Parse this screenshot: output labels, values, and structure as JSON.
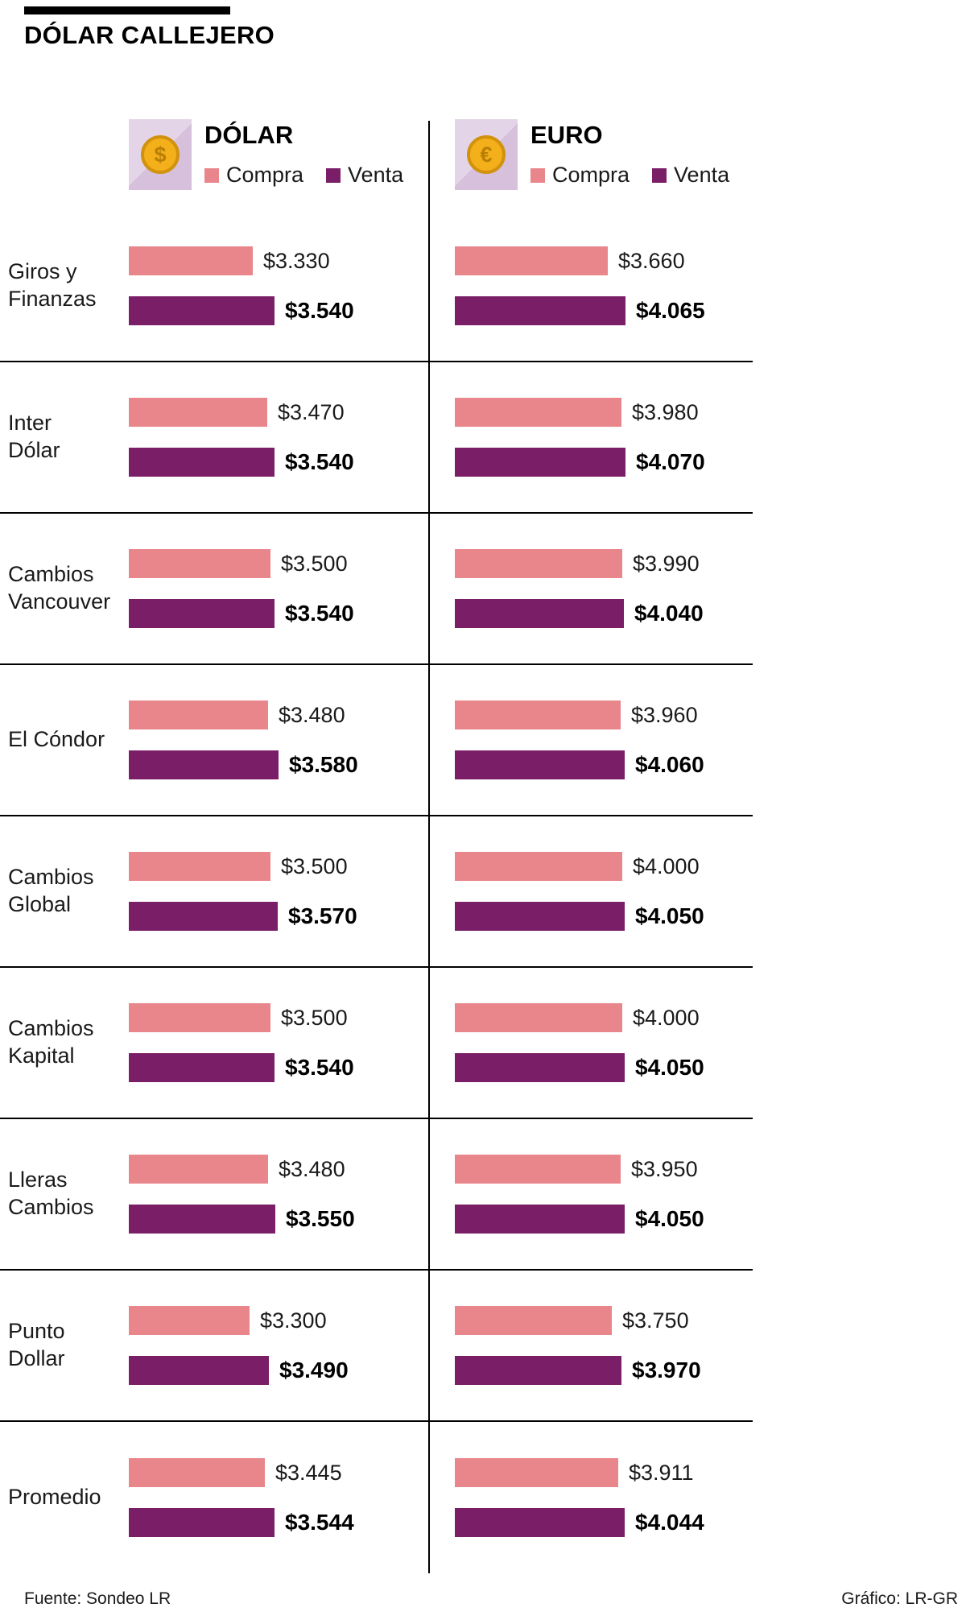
{
  "header": {
    "title": "DÓLAR CALLEJERO"
  },
  "columns": [
    {
      "id": "dolar",
      "label": "DÓLAR",
      "coin_symbol": "$",
      "legend": {
        "compra": "Compra",
        "venta": "Venta"
      }
    },
    {
      "id": "euro",
      "label": "EURO",
      "coin_symbol": "€",
      "legend": {
        "compra": "Compra",
        "venta": "Venta"
      }
    }
  ],
  "colors": {
    "compra": "#E8868C",
    "venta": "#7B1E68",
    "coin": "#F3B01A",
    "coin_edge": "#D1920E",
    "coin_text": "#B97E06",
    "tile_light": "#E4D4E7",
    "tile_dark": "#D6C0DC",
    "rule": "#000000"
  },
  "rows": [
    {
      "name": "Giros y\nFinanzas",
      "dolar": {
        "compra": {
          "label": "$3.330",
          "value": 3330
        },
        "venta": {
          "label": "$3.540",
          "value": 3540
        }
      },
      "euro": {
        "compra": {
          "label": "$3.660",
          "value": 3660
        },
        "venta": {
          "label": "$4.065",
          "value": 4065
        }
      }
    },
    {
      "name": "Inter\nDólar",
      "dolar": {
        "compra": {
          "label": "$3.470",
          "value": 3470
        },
        "venta": {
          "label": "$3.540",
          "value": 3540
        }
      },
      "euro": {
        "compra": {
          "label": "$3.980",
          "value": 3980
        },
        "venta": {
          "label": "$4.070",
          "value": 4070
        }
      }
    },
    {
      "name": "Cambios\nVancouver",
      "dolar": {
        "compra": {
          "label": "$3.500",
          "value": 3500
        },
        "venta": {
          "label": "$3.540",
          "value": 3540
        }
      },
      "euro": {
        "compra": {
          "label": "$3.990",
          "value": 3990
        },
        "venta": {
          "label": "$4.040",
          "value": 4040
        }
      }
    },
    {
      "name": "El Cóndor",
      "dolar": {
        "compra": {
          "label": "$3.480",
          "value": 3480
        },
        "venta": {
          "label": "$3.580",
          "value": 3580
        }
      },
      "euro": {
        "compra": {
          "label": "$3.960",
          "value": 3960
        },
        "venta": {
          "label": "$4.060",
          "value": 4060
        }
      }
    },
    {
      "name": "Cambios\nGlobal",
      "dolar": {
        "compra": {
          "label": "$3.500",
          "value": 3500
        },
        "venta": {
          "label": "$3.570",
          "value": 3570
        }
      },
      "euro": {
        "compra": {
          "label": "$4.000",
          "value": 4000
        },
        "venta": {
          "label": "$4.050",
          "value": 4050
        }
      }
    },
    {
      "name": "Cambios\nKapital",
      "dolar": {
        "compra": {
          "label": "$3.500",
          "value": 3500
        },
        "venta": {
          "label": "$3.540",
          "value": 3540
        }
      },
      "euro": {
        "compra": {
          "label": "$4.000",
          "value": 4000
        },
        "venta": {
          "label": "$4.050",
          "value": 4050
        }
      }
    },
    {
      "name": "Lleras\nCambios",
      "dolar": {
        "compra": {
          "label": "$3.480",
          "value": 3480
        },
        "venta": {
          "label": "$3.550",
          "value": 3550
        }
      },
      "euro": {
        "compra": {
          "label": "$3.950",
          "value": 3950
        },
        "venta": {
          "label": "$4.050",
          "value": 4050
        }
      }
    },
    {
      "name": "Punto\nDollar",
      "dolar": {
        "compra": {
          "label": "$3.300",
          "value": 3300
        },
        "venta": {
          "label": "$3.490",
          "value": 3490
        }
      },
      "euro": {
        "compra": {
          "label": "$3.750",
          "value": 3750
        },
        "venta": {
          "label": "$3.970",
          "value": 3970
        }
      }
    },
    {
      "name": "Promedio",
      "dolar": {
        "compra": {
          "label": "$3.445",
          "value": 3445
        },
        "venta": {
          "label": "$3.544",
          "value": 3544
        }
      },
      "euro": {
        "compra": {
          "label": "$3.911",
          "value": 3911
        },
        "venta": {
          "label": "$4.044",
          "value": 4044
        }
      }
    }
  ],
  "footer": {
    "source": "Fuente: Sondeo LR",
    "credit": "Gráfico: LR-GR"
  },
  "chart_data": {
    "type": "bar",
    "orientation": "horizontal",
    "title": "DÓLAR CALLEJERO",
    "categories": [
      "Giros y Finanzas",
      "Inter Dólar",
      "Cambios Vancouver",
      "El Cóndor",
      "Cambios Global",
      "Cambios Kapital",
      "Lleras Cambios",
      "Punto Dollar",
      "Promedio"
    ],
    "series": [
      {
        "name": "Dólar Compra",
        "color": "#E8868C",
        "values": [
          3330,
          3470,
          3500,
          3480,
          3500,
          3500,
          3480,
          3300,
          3445
        ]
      },
      {
        "name": "Dólar Venta",
        "color": "#7B1E68",
        "values": [
          3540,
          3540,
          3540,
          3580,
          3570,
          3540,
          3550,
          3490,
          3544
        ]
      },
      {
        "name": "Euro Compra",
        "color": "#E8868C",
        "values": [
          3660,
          3980,
          3990,
          3960,
          4000,
          4000,
          3950,
          3750,
          3911
        ]
      },
      {
        "name": "Euro Venta",
        "color": "#7B1E68",
        "values": [
          4065,
          4070,
          4040,
          4060,
          4050,
          4050,
          4050,
          3970,
          4044
        ]
      }
    ],
    "legend": [
      "Compra",
      "Venta"
    ],
    "legend_position": "top",
    "grid": false,
    "source": "Sondeo LR",
    "credit": "LR-GR"
  }
}
